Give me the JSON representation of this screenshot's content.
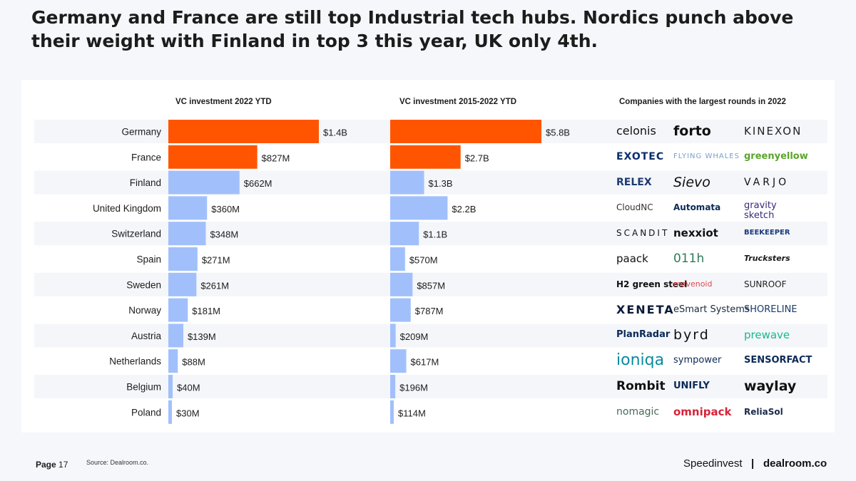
{
  "title": "Germany and France are still top Industrial tech hubs. Nordics punch above their weight with Finland in top 3 this year, UK only 4th.",
  "chart_data": [
    {
      "type": "bar",
      "orientation": "horizontal",
      "title": "VC investment 2022 YTD",
      "unit": "$M",
      "categories": [
        "Germany",
        "France",
        "Finland",
        "United Kingdom",
        "Switzerland",
        "Spain",
        "Sweden",
        "Norway",
        "Austria",
        "Netherlands",
        "Belgium",
        "Poland"
      ],
      "values": [
        1400,
        827,
        662,
        360,
        348,
        271,
        261,
        181,
        139,
        88,
        40,
        30
      ],
      "labels": [
        "$1.4B",
        "$827M",
        "$662M",
        "$360M",
        "$348M",
        "$271M",
        "$261M",
        "$181M",
        "$139M",
        "$88M",
        "$40M",
        "$30M"
      ],
      "colors": [
        "#ff5500",
        "#ff5500",
        "#a1c0fb",
        "#a1c0fb",
        "#a1c0fb",
        "#a1c0fb",
        "#a1c0fb",
        "#a1c0fb",
        "#a1c0fb",
        "#a1c0fb",
        "#a1c0fb",
        "#a1c0fb"
      ]
    },
    {
      "type": "bar",
      "orientation": "horizontal",
      "title": "VC investment 2015-2022 YTD",
      "unit": "$M",
      "categories": [
        "Germany",
        "France",
        "Finland",
        "United Kingdom",
        "Switzerland",
        "Spain",
        "Sweden",
        "Norway",
        "Austria",
        "Netherlands",
        "Belgium",
        "Poland"
      ],
      "values": [
        5800,
        2700,
        1300,
        2200,
        1100,
        570,
        857,
        787,
        209,
        617,
        196,
        114
      ],
      "labels": [
        "$5.8B",
        "$2.7B",
        "$1.3B",
        "$2.2B",
        "$1.1B",
        "$570M",
        "$857M",
        "$787M",
        "$209M",
        "$617M",
        "$196M",
        "$114M"
      ],
      "colors": [
        "#ff5500",
        "#ff5500",
        "#a1c0fb",
        "#a1c0fb",
        "#a1c0fb",
        "#a1c0fb",
        "#a1c0fb",
        "#a1c0fb",
        "#a1c0fb",
        "#a1c0fb",
        "#a1c0fb",
        "#a1c0fb"
      ]
    }
  ],
  "companies": {
    "title": "Companies with the largest rounds in 2022",
    "rows": [
      [
        "celonis",
        "forto",
        "KINEXON"
      ],
      [
        "EXOTEC",
        "FLYING WHALES",
        "greenyellow"
      ],
      [
        "RELEX",
        "Sievo",
        "VARJO"
      ],
      [
        "CloudNC",
        "Automata",
        "gravity sketch"
      ],
      [
        "SCANDIT",
        "nexxiot",
        "BEEKEEPER"
      ],
      [
        "paack",
        "011h",
        "Trucksters"
      ],
      [
        "H2 green steel",
        "mavenoid",
        "SUNROOF"
      ],
      [
        "XENETA",
        "eSmart Systems",
        "SHORELINE"
      ],
      [
        "PlanRadar",
        "byrd",
        "prewave"
      ],
      [
        "ioniqa",
        "sympower",
        "SENSORFACT"
      ],
      [
        "Rombit",
        "UNIFLY",
        "waylay"
      ],
      [
        "nomagic",
        "omnipack",
        "ReliaSol"
      ]
    ]
  },
  "footer": {
    "page_label": "Page",
    "page_number": "17",
    "source": "Source: Dealroom.co.",
    "brand_left": "Speedinvest",
    "separator": "|",
    "brand_right": "dealroom.co"
  }
}
